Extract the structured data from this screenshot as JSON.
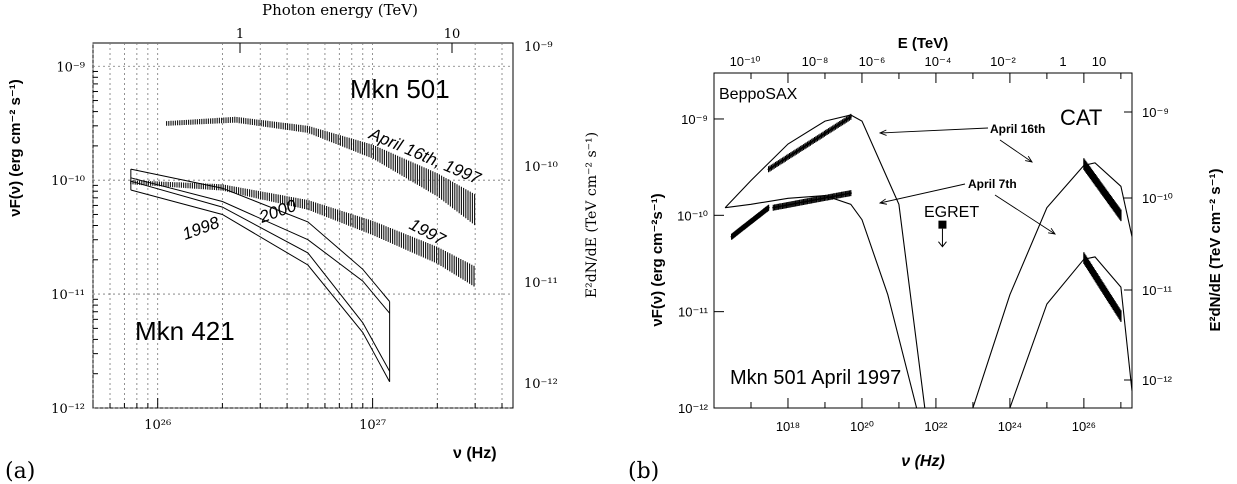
{
  "chart_data": [
    {
      "panel_label": "(a)",
      "type": "line",
      "top_axis_title": "Photon energy (TeV)",
      "top_ticks": [
        "1",
        "10"
      ],
      "xlabel": "ν (Hz)",
      "ylabel_left": "νF(ν) (erg cm⁻² s⁻¹)",
      "ylabel_right": "E²dN/dE (TeV cm⁻² s⁻¹)",
      "x_scale": "log",
      "y_scale": "log",
      "xlim": [
        5e+25,
        4.5e+27
      ],
      "ylim": [
        1e-12,
        1.6e-09
      ],
      "y_ticks": [
        "10⁻¹²",
        "10⁻¹¹",
        "10⁻¹⁰",
        "10⁻⁹"
      ],
      "x_ticks": [
        "10²⁶",
        "10²⁷"
      ],
      "right_ticks": [
        "10⁻¹²",
        "10⁻¹¹",
        "10⁻¹⁰",
        "10⁻⁹"
      ],
      "grid": true,
      "annotations": {
        "source_top": "Mkn 501",
        "source_bottom": "Mkn 421",
        "april": "April 16th, 1997",
        "y1997": "1997",
        "y1998": "1998",
        "y2000": "2000"
      },
      "series": [
        {
          "name": "April 16th, 1997",
          "x": [
            1.1e+26,
            2.3e+26,
            5e+26,
            1e+27,
            2e+27,
            3e+27
          ],
          "y_low": [
            3e-10,
            3.2e-10,
            2.6e-10,
            1.55e-10,
            7.2e-11,
            4e-11
          ],
          "y_high": [
            3.3e-10,
            3.6e-10,
            3e-10,
            2.05e-10,
            1.15e-10,
            7.5e-11
          ]
        },
        {
          "name": "1997",
          "x": [
            7.5e+25,
            2e+26,
            5e+26,
            1e+27,
            2e+27,
            3e+27
          ],
          "y_low": [
            9.2e-11,
            8.1e-11,
            5.5e-11,
            3.3e-11,
            1.85e-11,
            1.15e-11
          ],
          "y_high": [
            1e-10,
            9.2e-11,
            6.7e-11,
            4.4e-11,
            2.6e-11,
            1.75e-11
          ]
        },
        {
          "name": "2000",
          "x": [
            7.5e+25,
            2e+26,
            5e+26,
            9e+26,
            1.2e+27
          ],
          "y_low": [
            1.05e-10,
            6.5e-11,
            3e-11,
            1.3e-11,
            6.8e-12
          ],
          "y_high": [
            1.25e-10,
            8.5e-11,
            4.3e-11,
            1.65e-11,
            8.6e-12
          ]
        },
        {
          "name": "1998",
          "x": [
            7.5e+25,
            2e+26,
            5e+26,
            9e+26,
            1.2e+27
          ],
          "y_low": [
            8.2e-11,
            5e-11,
            1.8e-11,
            4.6e-12,
            1.7e-12
          ],
          "y_high": [
            9.8e-11,
            5.8e-11,
            2.3e-11,
            5.6e-12,
            2.1e-12
          ]
        }
      ]
    },
    {
      "panel_label": "(b)",
      "type": "line",
      "top_axis_title": "E (TeV)",
      "top_ticks": [
        "10⁻¹⁰",
        "10⁻⁸",
        "10⁻⁶",
        "10⁻⁴",
        "10⁻²",
        "1",
        "10"
      ],
      "xlabel": "ν (Hz)",
      "ylabel_left": "νF(ν) (erg cm⁻²s⁻¹)",
      "ylabel_right": "E²dN/dE (TeV cm⁻² s⁻¹)",
      "x_scale": "log",
      "y_scale": "log",
      "xlim": [
        1e+16,
        2e+27
      ],
      "ylim": [
        1e-12,
        3e-09
      ],
      "y_ticks": [
        "10⁻¹²",
        "10⁻¹¹",
        "10⁻¹⁰",
        "10⁻⁹"
      ],
      "x_ticks": [
        "10¹⁸",
        "10²⁰",
        "10²²",
        "10²⁴",
        "10²⁶"
      ],
      "right_ticks": [
        "10⁻¹²",
        "10⁻¹¹",
        "10⁻¹⁰",
        "10⁻⁹"
      ],
      "grid": false,
      "annotations": {
        "beppo": "BeppoSAX",
        "cat": "CAT",
        "egret": "EGRET",
        "april16": "April 16th",
        "april7": "April 7th",
        "title_bottom": "Mkn 501 April 1997"
      },
      "series": [
        {
          "name": "April 16th",
          "x": [
            2e+16,
            1e+17,
            1e+18,
            1e+19,
            5e+19,
            1e+20,
            1e+21,
            5e+21
          ],
          "y": [
            1.2e-10,
            2.3e-10,
            5.5e-10,
            9.5e-10,
            1.1e-09,
            9.5e-10,
            1.3e-10,
            1e-12
          ]
        },
        {
          "name": "April 7th",
          "x": [
            2e+16,
            1e+17,
            1e+18,
            1e+19,
            5e+19,
            1e+20,
            5e+20,
            3e+21
          ],
          "y": [
            1.2e-10,
            1.3e-10,
            1.5e-10,
            1.6e-10,
            1.3e-10,
            9e-11,
            1.5e-11,
            1e-12
          ]
        },
        {
          "name": "IC April 16th",
          "x": [
            1e+23,
            1e+24,
            1e+25,
            1e+26,
            2e+26,
            1e+27,
            2e+27
          ],
          "y": [
            1e-12,
            1.5e-11,
            1.2e-10,
            3.3e-10,
            3.5e-10,
            2e-10,
            6e-11
          ]
        },
        {
          "name": "IC April 7th",
          "x": [
            5e+23,
            1e+24,
            1e+25,
            1e+26,
            2e+26,
            1e+27,
            2e+27
          ],
          "y": [
            1e-12,
            1e-12,
            1.2e-11,
            3.5e-11,
            3.7e-11,
            1.8e-11,
            1.5e-12
          ]
        },
        {
          "name": "EGRET",
          "x": [
            1.5e+22
          ],
          "y": [
            8e-11
          ]
        }
      ]
    }
  ]
}
